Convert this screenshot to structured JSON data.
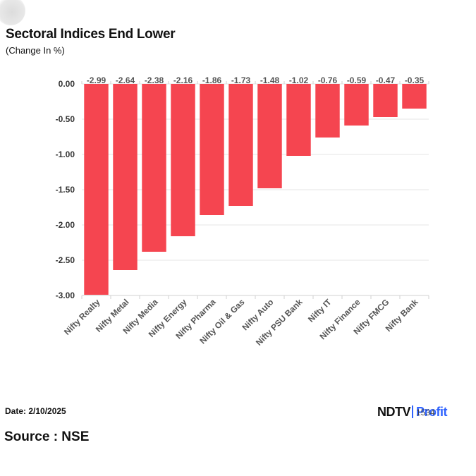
{
  "title": "Sectoral Indices End Lower",
  "subtitle": "(Change In %)",
  "footer": {
    "date": "Date: 2/10/2025",
    "source": "Source : NSE",
    "time_fragment": "1534"
  },
  "logo": {
    "primary": "NDTV",
    "secondary": "Profit"
  },
  "colors": {
    "bar": "#f54550",
    "grid": "#e6e6e6",
    "axis": "#d0d0d0",
    "label": "#555555"
  },
  "chart_data": {
    "type": "bar",
    "title": "Sectoral Indices End Lower",
    "subtitle": "(Change In %)",
    "categories": [
      "Nifty Realty",
      "Nifty Metal",
      "Nifty Media",
      "Nifty Energy",
      "Nifty Pharma",
      "Nifty Oil & Gas",
      "Nifty Auto",
      "Nifty PSU Bank",
      "Nifty IT",
      "Nifty Finance",
      "Nifty FMCG",
      "Nifty Bank"
    ],
    "values": [
      -2.99,
      -2.64,
      -2.38,
      -2.16,
      -1.86,
      -1.73,
      -1.48,
      -1.02,
      -0.76,
      -0.59,
      -0.47,
      -0.35
    ],
    "data_labels": [
      "-2.99",
      "-2.64",
      "-2.38",
      "-2.16",
      "-1.86",
      "-1.73",
      "-1.48",
      "-1.02",
      "-0.76",
      "-0.59",
      "-0.47",
      "-0.35"
    ],
    "ylim": [
      -3.0,
      0.0
    ],
    "yticks": [
      0.0,
      -0.5,
      -1.0,
      -1.5,
      -2.0,
      -2.5,
      -3.0
    ],
    "ytick_labels": [
      "0.00",
      "-0.50",
      "-1.00",
      "-1.50",
      "-2.00",
      "-2.50",
      "-3.00"
    ],
    "xlabel": "",
    "ylabel": "",
    "grid": true,
    "legend": "none"
  }
}
